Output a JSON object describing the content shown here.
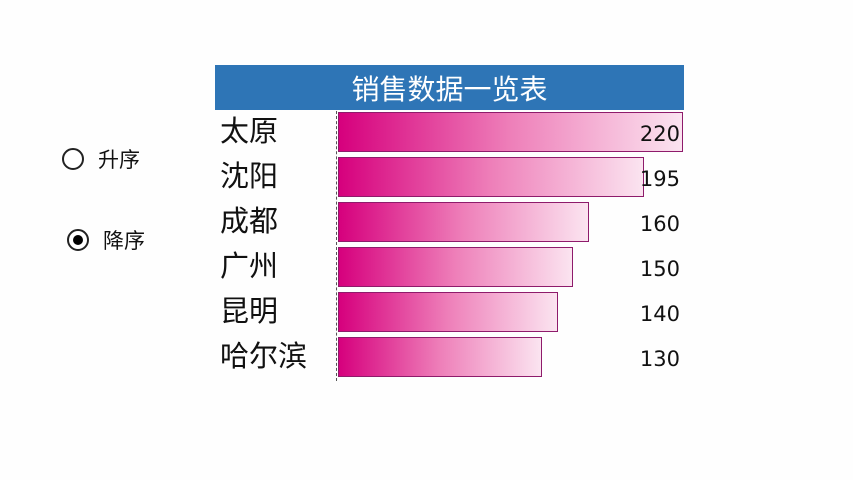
{
  "sort_options": [
    {
      "label": "升序",
      "selected": false
    },
    {
      "label": "降序",
      "selected": true
    }
  ],
  "colors": {
    "title_bg": "#2e75b6",
    "bar_start": "#d6007d",
    "bar_end": "#fbe4f0",
    "bar_border": "#8e1b6b"
  },
  "chart_data": {
    "type": "bar",
    "orientation": "horizontal",
    "title": "销售数据一览表",
    "sort": "descending",
    "categories": [
      "太原",
      "沈阳",
      "成都",
      "广州",
      "昆明",
      "哈尔滨"
    ],
    "values": [
      220,
      195,
      160,
      150,
      140,
      130
    ],
    "xlim": [
      0,
      220
    ],
    "grid": false,
    "legend": "none"
  }
}
